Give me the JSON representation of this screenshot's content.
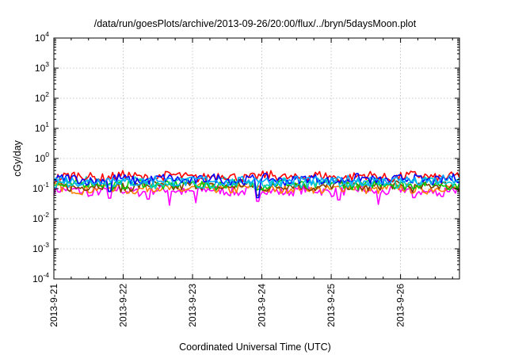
{
  "chart_data": {
    "type": "line",
    "title": "/data/run/goesPlots/archive/2013-09-26/20:00/flux/../bryn/5daysMoon.plot",
    "xlabel": "Coordinated Universal Time (UTC)",
    "ylabel": "cGy/day",
    "yscale": "log",
    "ylim": [
      0.0001,
      10000
    ],
    "xlim": [
      0,
      5.85
    ],
    "grid": true,
    "x_ticks": [
      {
        "value": 0,
        "label": "2013-9-21"
      },
      {
        "value": 1,
        "label": "2013-9-22"
      },
      {
        "value": 2,
        "label": "2013-9-23"
      },
      {
        "value": 3,
        "label": "2013-9-24"
      },
      {
        "value": 4,
        "label": "2013-9-25"
      },
      {
        "value": 5,
        "label": "2013-9-26"
      }
    ],
    "y_ticks": [
      {
        "value": 0.0001,
        "base": "10",
        "exp": "-4"
      },
      {
        "value": 0.001,
        "base": "10",
        "exp": "-3"
      },
      {
        "value": 0.01,
        "base": "10",
        "exp": "-2"
      },
      {
        "value": 0.1,
        "base": "10",
        "exp": "-1"
      },
      {
        "value": 1,
        "base": "10",
        "exp": "0"
      },
      {
        "value": 10,
        "base": "10",
        "exp": "1"
      },
      {
        "value": 100,
        "base": "10",
        "exp": "2"
      },
      {
        "value": 1000,
        "base": "10",
        "exp": "3"
      },
      {
        "value": 10000,
        "base": "10",
        "exp": "4"
      }
    ],
    "series": [
      {
        "color": "#ff00ff",
        "level": 0.085,
        "dips": [
          [
            0.55,
            0.06
          ],
          [
            0.8,
            0.048
          ],
          [
            1.35,
            0.045
          ],
          [
            1.67,
            0.028
          ],
          [
            2.05,
            0.034
          ],
          [
            2.95,
            0.038
          ],
          [
            4.12,
            0.042
          ],
          [
            4.68,
            0.03
          ],
          [
            5.2,
            0.05
          ],
          [
            5.6,
            0.055
          ]
        ]
      },
      {
        "color": "#ff7f00",
        "level": 0.1,
        "dips": []
      },
      {
        "color": "#7f3f00",
        "level": 0.12,
        "dips": [
          [
            0.8,
            0.08
          ],
          [
            2.95,
            0.06
          ]
        ]
      },
      {
        "color": "#00cc00",
        "level": 0.14,
        "dips": []
      },
      {
        "color": "#00cccc",
        "level": 0.16,
        "dips": []
      },
      {
        "color": "#ff0000",
        "level": 0.25,
        "dips": []
      },
      {
        "color": "#0000ff",
        "level": 0.2,
        "dips": [
          [
            0.8,
            0.08
          ],
          [
            2.95,
            0.05
          ]
        ]
      },
      {
        "color": "#00aaff",
        "level": 0.18,
        "dips": []
      }
    ]
  }
}
